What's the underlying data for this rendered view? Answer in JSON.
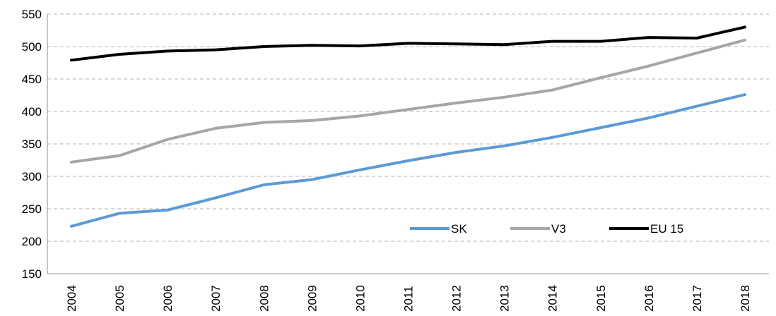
{
  "chart_data": {
    "type": "line",
    "title": "",
    "xlabel": "",
    "ylabel": "",
    "x": [
      "2004",
      "2005",
      "2006",
      "2007",
      "2008",
      "2009",
      "2010",
      "2011",
      "2012",
      "2013",
      "2014",
      "2015",
      "2016",
      "2017",
      "2018"
    ],
    "ylim": [
      150,
      550
    ],
    "yticks": [
      "150",
      "200",
      "250",
      "300",
      "350",
      "400",
      "450",
      "500",
      "550"
    ],
    "grid": true,
    "legend_position": "bottom-right",
    "series": [
      {
        "name": "SK",
        "color": "#5b9bd5",
        "values": [
          223,
          243,
          248,
          267,
          287,
          295,
          310,
          324,
          337,
          347,
          360,
          375,
          390,
          408,
          426
        ]
      },
      {
        "name": "V3",
        "color": "#a6a6a6",
        "values": [
          322,
          332,
          357,
          374,
          383,
          386,
          393,
          403,
          413,
          422,
          433,
          452,
          470,
          490,
          510
        ]
      },
      {
        "name": "EU 15",
        "color": "#000000",
        "values": [
          479,
          488,
          493,
          495,
          500,
          502,
          501,
          505,
          504,
          503,
          508,
          508,
          514,
          513,
          530
        ]
      }
    ]
  }
}
